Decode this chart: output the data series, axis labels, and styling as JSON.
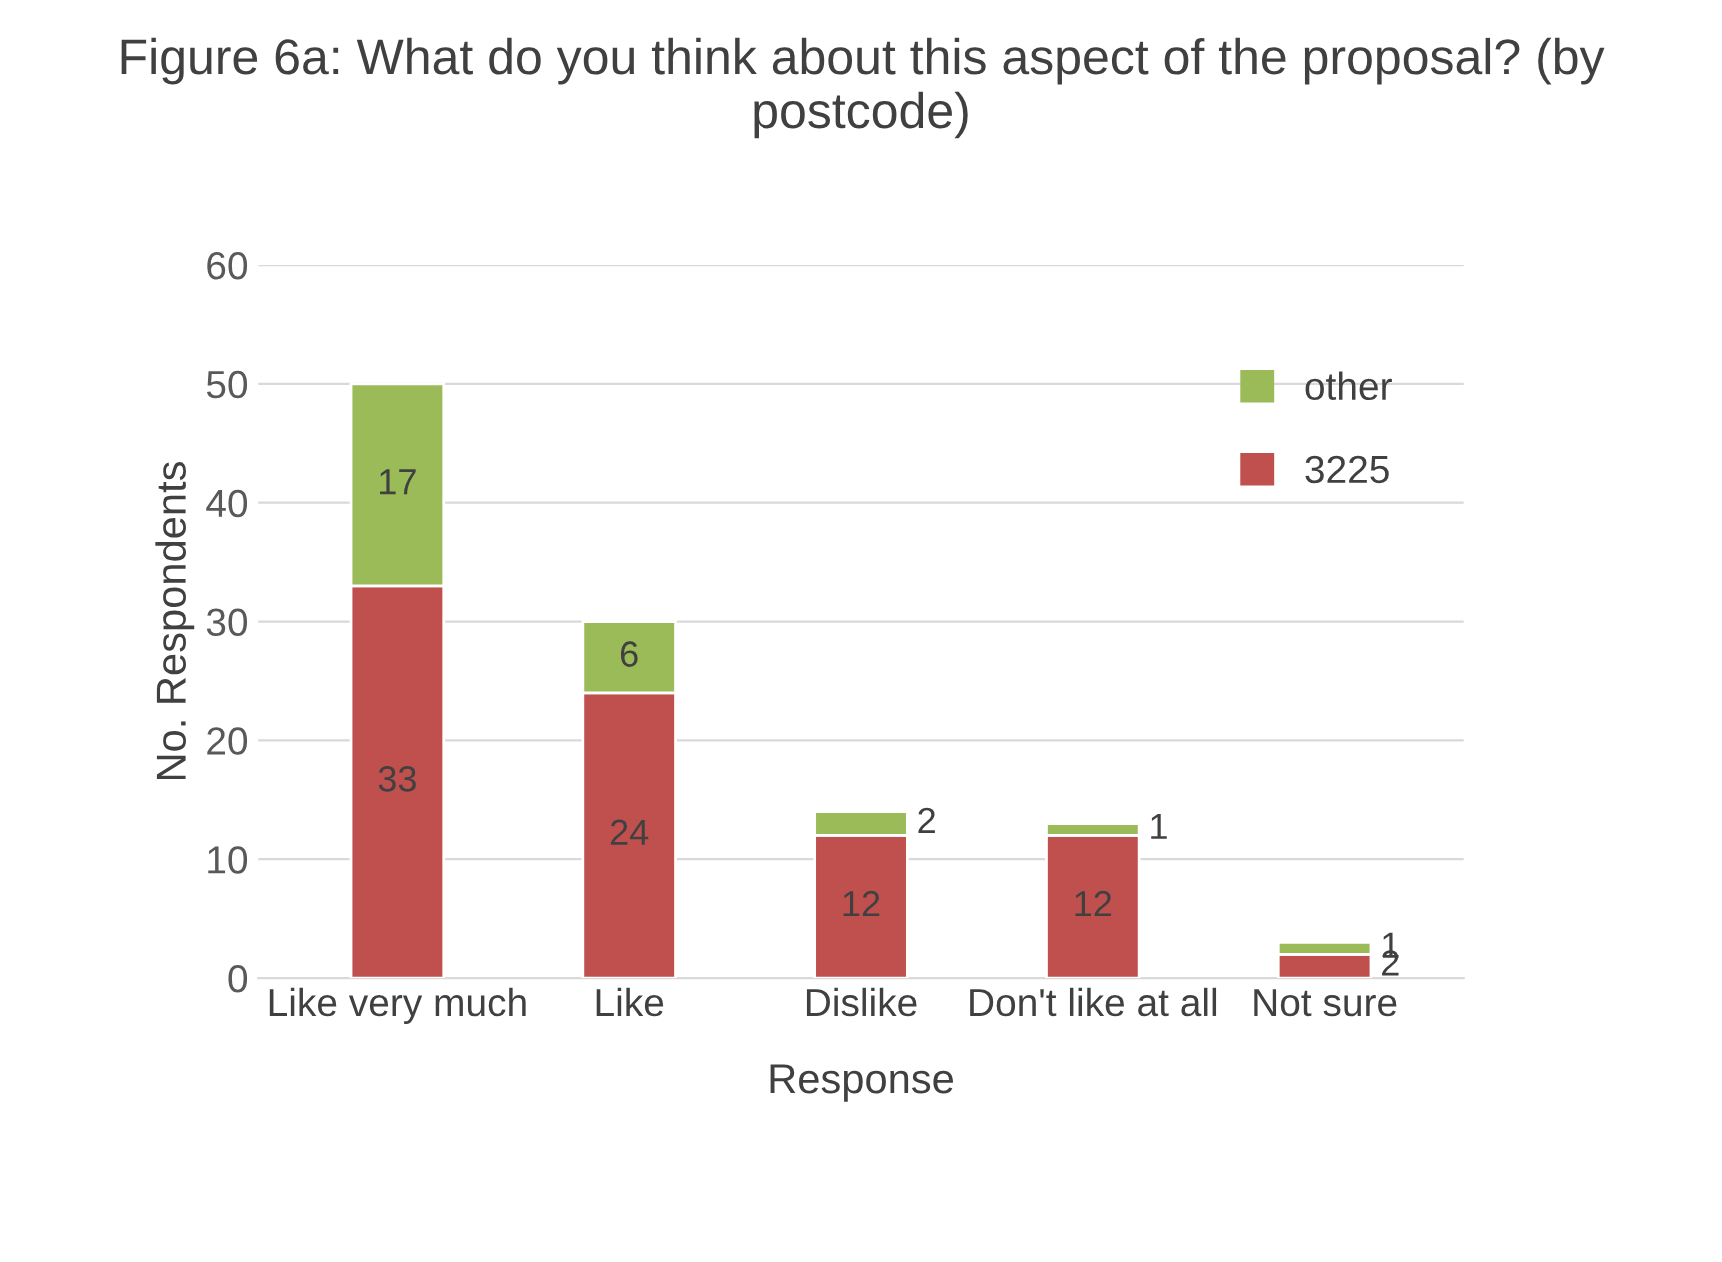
{
  "chart_data": {
    "type": "bar",
    "stacked": true,
    "title": "Figure 6a: What do you think about this aspect of the proposal? (by postcode)",
    "xlabel": "Response",
    "ylabel": "No. Respondents",
    "categories": [
      "Like very much",
      "Like",
      "Dislike",
      "Don't like at all",
      "Not sure"
    ],
    "series": [
      {
        "name": "3225",
        "color": "#c0504d",
        "values": [
          33,
          24,
          12,
          12,
          2
        ]
      },
      {
        "name": "other",
        "color": "#9bbb59",
        "values": [
          17,
          6,
          2,
          1,
          1
        ]
      }
    ],
    "ylim": [
      0,
      60
    ],
    "yticks": [
      0,
      10,
      20,
      30,
      40,
      50,
      60
    ],
    "grid": "y",
    "legend": "top right",
    "data_labels": true
  }
}
